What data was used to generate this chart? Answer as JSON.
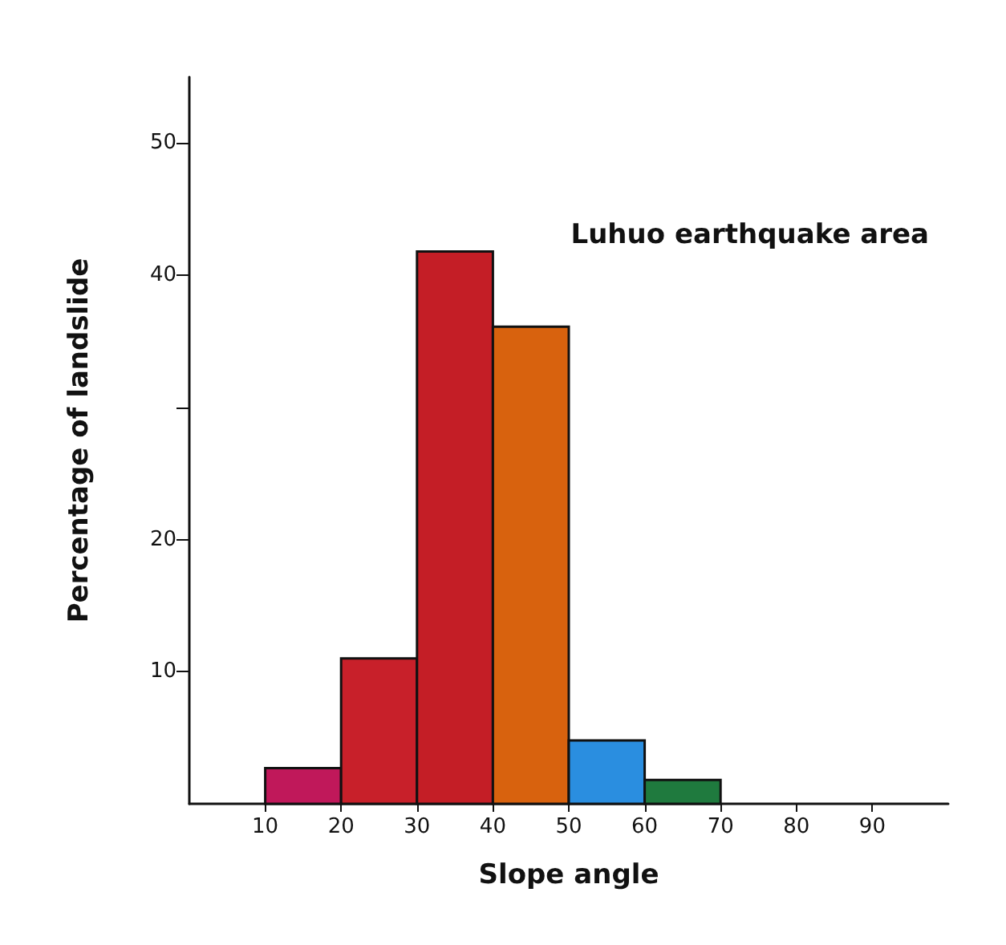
{
  "chart_data": {
    "type": "histogram",
    "xlabel": "Slope angle",
    "ylabel": "Percentage of landslide",
    "bins": [
      10,
      20,
      30,
      40,
      50,
      60,
      70
    ],
    "values": [
      2.7,
      11,
      41.8,
      36.1,
      4.8,
      1.8
    ],
    "colors": [
      "#c0185a",
      "#c8202a",
      "#c41e26",
      "#d8620e",
      "#2a8ee0",
      "#1f7a3e"
    ],
    "xlim": [
      0,
      100
    ],
    "xticks": [
      10,
      20,
      30,
      40,
      50,
      60,
      70,
      80,
      90
    ],
    "ylim": [
      0,
      55
    ],
    "yticks": [
      {
        "value": 10,
        "label": "10"
      },
      {
        "value": 20,
        "label": "20"
      },
      {
        "value": 30,
        "label": null
      },
      {
        "value": 40,
        "label": "40"
      },
      {
        "value": 50,
        "label": "50"
      }
    ],
    "annotations": [
      "Luhuo earthquake area"
    ],
    "grid": false
  }
}
